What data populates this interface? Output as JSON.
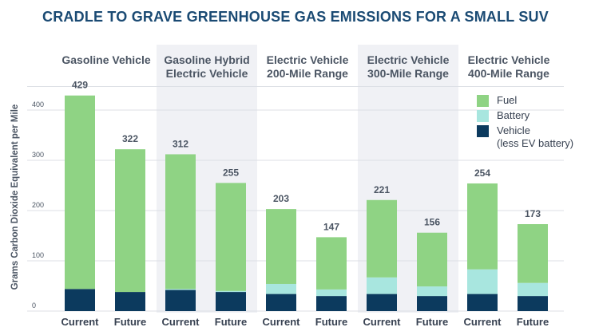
{
  "chart_data": {
    "type": "bar",
    "stacked": true,
    "title": "CRADLE TO GRAVE GREENHOUSE GAS EMISSIONS FOR A SMALL SUV",
    "ylabel": "Grams Carbon Dioxide Equivalent per Mile",
    "ylim": [
      0,
      450
    ],
    "yticks": [
      0,
      100,
      200,
      300,
      400
    ],
    "groups": [
      {
        "label_lines": [
          "Gasoline Vehicle"
        ],
        "shaded": false
      },
      {
        "label_lines": [
          "Gasoline Hybrid",
          "Electric Vehicle"
        ],
        "shaded": true
      },
      {
        "label_lines": [
          "Electric Vehicle",
          "200-Mile Range"
        ],
        "shaded": false
      },
      {
        "label_lines": [
          "Electric Vehicle",
          "300-Mile Range"
        ],
        "shaded": true
      },
      {
        "label_lines": [
          "Electric Vehicle",
          "400-Mile Range"
        ],
        "shaded": false
      }
    ],
    "categories": [
      "Current",
      "Future",
      "Current",
      "Future",
      "Current",
      "Future",
      "Current",
      "Future",
      "Current",
      "Future"
    ],
    "totals": [
      429,
      322,
      312,
      255,
      203,
      147,
      221,
      156,
      254,
      173
    ],
    "series": [
      {
        "name": "Vehicle",
        "color": "#0c3a5e",
        "values": [
          44,
          38,
          42,
          38,
          34,
          30,
          34,
          30,
          34,
          30
        ]
      },
      {
        "name": "Battery",
        "color": "#a8e6df",
        "values": [
          0,
          0,
          2,
          2,
          20,
          13,
          33,
          19,
          49,
          26
        ]
      },
      {
        "name": "Fuel",
        "color": "#8fd384",
        "values": [
          385,
          284,
          268,
          215,
          149,
          104,
          154,
          107,
          171,
          117
        ]
      }
    ],
    "legend": {
      "placement": "right",
      "items": [
        {
          "series": "Fuel",
          "lines": [
            "Fuel"
          ]
        },
        {
          "series": "Battery",
          "lines": [
            "Battery"
          ]
        },
        {
          "series": "Vehicle",
          "lines": [
            "Vehicle",
            "(less EV battery)"
          ]
        }
      ]
    },
    "grid": true
  }
}
